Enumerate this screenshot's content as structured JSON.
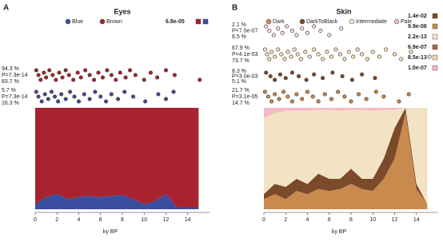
{
  "chart_data": [
    {
      "type": "stacked_area",
      "letter": "A",
      "title": "Eyes",
      "xlabel": "ky BP",
      "xlim": [
        0,
        16
      ],
      "ylim": [
        0,
        1
      ],
      "xticks": [
        0,
        2,
        4,
        6,
        8,
        10,
        12,
        14
      ],
      "x": [
        0,
        1,
        2,
        3,
        4,
        5,
        6,
        7,
        8,
        9,
        10,
        11,
        12,
        13,
        14,
        15
      ],
      "series": [
        {
          "name": "Blue",
          "color": "#3a4ea0",
          "values": [
            0.05,
            0.12,
            0.15,
            0.1,
            0.12,
            0.13,
            0.12,
            0.13,
            0.14,
            0.1,
            0.05,
            0.08,
            0.15,
            0.02,
            0.02,
            0.02
          ]
        },
        {
          "name": "Brown",
          "color": "#a8232f",
          "values": [
            0.95,
            0.88,
            0.85,
            0.9,
            0.88,
            0.87,
            0.88,
            0.87,
            0.86,
            0.9,
            0.95,
            0.92,
            0.85,
            0.98,
            0.98,
            0.98
          ]
        }
      ],
      "pvalues": [
        {
          "label": "6.8e-05",
          "colors": [
            "#a8232f",
            "#3a4ea0"
          ]
        }
      ],
      "strips": [
        {
          "color": "#a8232f",
          "labels": [
            "94.3 %",
            "P=7.3e-14",
            "83.7 %"
          ],
          "x": [
            0.1,
            0.3,
            0.5,
            0.8,
            1.0,
            1.3,
            1.6,
            1.9,
            2.2,
            2.5,
            2.8,
            3.1,
            3.5,
            3.9,
            4.2,
            4.6,
            5.0,
            5.4,
            5.8,
            6.2,
            6.6,
            7.0,
            7.4,
            7.8,
            8.3,
            8.7,
            9.2,
            10.0,
            10.6,
            11.2,
            12.0,
            12.8,
            15.1
          ]
        },
        {
          "color": "#3a4ea0",
          "labels": [
            "5.7 %",
            "P=7.3e-14",
            "16.3 %"
          ],
          "x": [
            0.1,
            0.3,
            0.6,
            0.9,
            1.2,
            1.5,
            1.8,
            2.1,
            2.4,
            2.8,
            3.2,
            3.6,
            4.0,
            4.5,
            5.0,
            5.5,
            6.0,
            6.5,
            7.0,
            7.6,
            8.2,
            9.0,
            10.1,
            11.3,
            12.0,
            12.7
          ]
        }
      ]
    },
    {
      "type": "stacked_area",
      "letter": "B",
      "title": "Skin",
      "xlabel": "ky BP",
      "xlim": [
        0,
        16
      ],
      "ylim": [
        0,
        1
      ],
      "xticks": [
        0,
        2,
        4,
        6,
        8,
        10,
        12,
        14
      ],
      "x": [
        0,
        1,
        2,
        3,
        4,
        5,
        6,
        7,
        8,
        9,
        10,
        11,
        12,
        13,
        14,
        15
      ],
      "series": [
        {
          "name": "Dark",
          "color": "#c98a4e",
          "values": [
            0.1,
            0.15,
            0.1,
            0.18,
            0.15,
            0.2,
            0.18,
            0.2,
            0.25,
            0.2,
            0.18,
            0.3,
            0.5,
            0.95,
            0.2,
            0.05
          ]
        },
        {
          "name": "DarkToBlack",
          "color": "#7a4a2a",
          "values": [
            0.05,
            0.1,
            0.12,
            0.12,
            0.1,
            0.15,
            0.12,
            0.1,
            0.15,
            0.1,
            0.12,
            0.2,
            0.3,
            0.05,
            0.05,
            0.0
          ]
        },
        {
          "name": "Intermediate",
          "color": "#f3e3c5",
          "values": [
            0.75,
            0.7,
            0.75,
            0.67,
            0.72,
            0.63,
            0.68,
            0.67,
            0.58,
            0.68,
            0.67,
            0.48,
            0.18,
            0.0,
            0.75,
            0.95
          ]
        },
        {
          "name": "Pale",
          "color": "#f5b8c8",
          "values": [
            0.1,
            0.05,
            0.03,
            0.03,
            0.03,
            0.02,
            0.02,
            0.03,
            0.02,
            0.02,
            0.03,
            0.02,
            0.02,
            0.0,
            0.0,
            0.0
          ]
        }
      ],
      "pvalues": [
        {
          "label": "1.4e-02",
          "colors": [
            "#7a4a2a"
          ]
        },
        {
          "label": "9.9e-06",
          "colors": [
            "#c98a4e"
          ]
        },
        {
          "label": "2.2e-13",
          "colors": [
            "#f3e3c5"
          ]
        },
        {
          "label": "6.9e-07",
          "colors": [
            "#a8683a"
          ]
        },
        {
          "label": "8.5e-13",
          "colors": [
            "#f0d6b0"
          ]
        },
        {
          "label": "1.0e-07",
          "colors": [
            "#f5b8c8"
          ]
        }
      ],
      "strips": [
        {
          "color": "#f5e0e6",
          "labels": [
            "2.1 %",
            "P=7.5e-07",
            "6.5 %"
          ],
          "x": [
            0.2,
            0.5,
            0.9,
            1.3,
            1.7,
            2.1,
            2.6,
            3.0,
            3.5,
            4.0,
            4.6,
            5.2,
            6.0,
            7.1
          ]
        },
        {
          "color": "#f3e3c5",
          "labels": [
            "67.9 %",
            "P=4.1e-03",
            "73.7 %"
          ],
          "x": [
            0.1,
            0.3,
            0.5,
            0.7,
            1.0,
            1.3,
            1.6,
            1.9,
            2.2,
            2.5,
            2.8,
            3.1,
            3.4,
            3.8,
            4.2,
            4.6,
            5.0,
            5.4,
            5.8,
            6.2,
            6.6,
            7.0,
            7.4,
            7.8,
            8.2,
            8.6,
            9.0,
            9.5,
            10.0,
            10.6,
            11.2,
            12.0,
            12.6,
            13.5,
            15.2
          ]
        },
        {
          "color": "#7a4a2a",
          "labels": [
            "8.3 %",
            "P=3.0e-03",
            "5.1 %"
          ],
          "x": [
            0.2,
            0.6,
            1.0,
            1.5,
            2.0,
            2.6,
            3.2,
            3.9,
            4.6,
            5.4,
            6.3,
            7.2,
            8.1,
            9.0,
            10.2
          ]
        },
        {
          "color": "#c98a4e",
          "labels": [
            "21.7 %",
            "P=3.1e-05",
            "14.7 %"
          ],
          "x": [
            0.1,
            0.4,
            0.7,
            1.0,
            1.4,
            1.8,
            2.2,
            2.6,
            3.0,
            3.5,
            4.0,
            4.5,
            5.0,
            5.6,
            6.2,
            6.8,
            7.4,
            8.0,
            8.7,
            9.4,
            10.3,
            11.0,
            12.4,
            13.3
          ]
        }
      ]
    }
  ]
}
